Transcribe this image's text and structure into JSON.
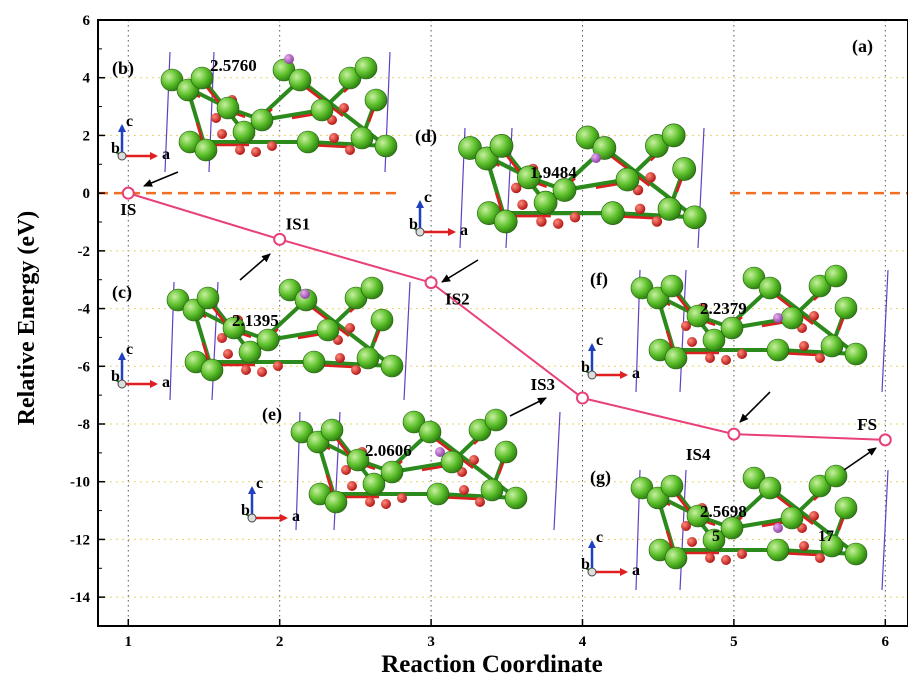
{
  "chart_data": {
    "type": "line",
    "panel_label": "(a)",
    "xlabel": "Reaction Coordinate",
    "ylabel": "Relative Energy (eV)",
    "xlim": [
      0.8,
      6.15
    ],
    "ylim": [
      -15,
      6
    ],
    "xticks": [
      1,
      2,
      3,
      4,
      5,
      6
    ],
    "yticks": [
      6,
      4,
      2,
      0,
      -2,
      -4,
      -6,
      -8,
      -10,
      -12,
      -14
    ],
    "reference_line_y": 0,
    "colors": {
      "line": "#e8407a",
      "reference": "#f07020",
      "grid_h": "#e6d36a",
      "grid_v": "#555555"
    },
    "series": [
      {
        "x": [
          1,
          2,
          3,
          4,
          5,
          6
        ],
        "y": [
          0.0,
          -1.6,
          -3.1,
          -7.1,
          -8.35,
          -8.55
        ],
        "point_labels": [
          "IS",
          "IS1",
          "IS2",
          "IS3",
          "IS4",
          "FS"
        ]
      }
    ],
    "insets": [
      {
        "label": "(b)",
        "distance": "2.5760"
      },
      {
        "label": "(c)",
        "distance": "2.1395"
      },
      {
        "label": "(d)",
        "distance": "1.9484"
      },
      {
        "label": "(e)",
        "distance": "2.0606"
      },
      {
        "label": "(f)",
        "distance": "2.2379"
      },
      {
        "label": "(g)",
        "distance": "2.5698",
        "sites": [
          "5",
          "17"
        ]
      }
    ],
    "axis_glyphs": {
      "c": "c",
      "a": "a",
      "b": "b"
    }
  }
}
